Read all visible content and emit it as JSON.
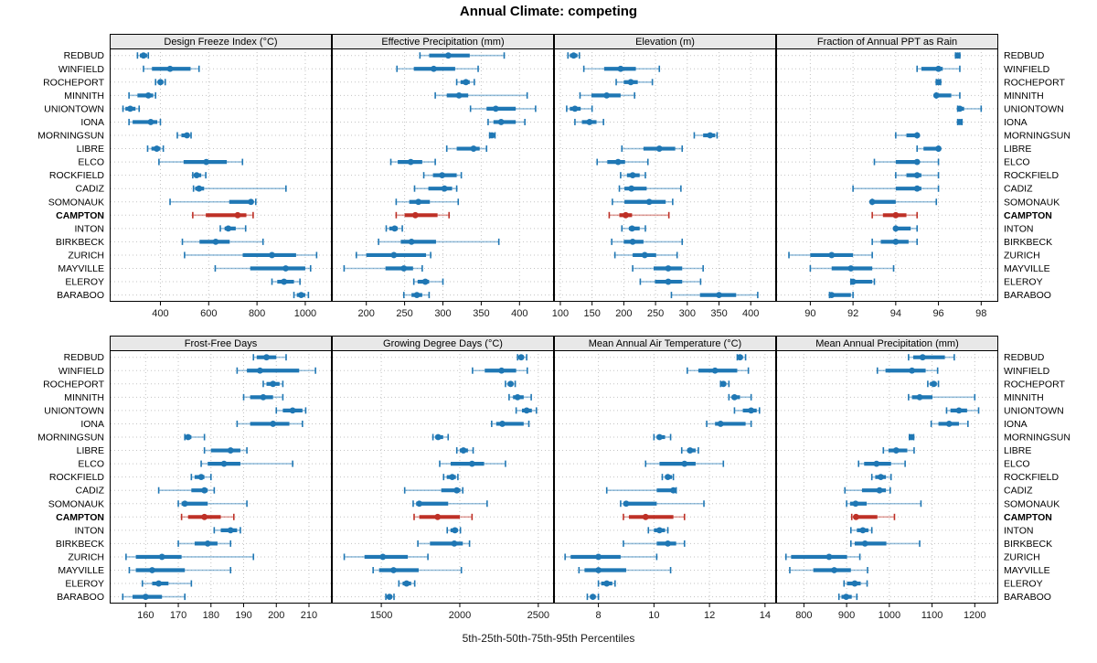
{
  "title": "Annual Climate: competing",
  "caption": "5th-25th-50th-75th-95th Percentiles",
  "percentiles": [
    "5th",
    "25th",
    "50th",
    "75th",
    "95th"
  ],
  "sites": [
    "REDBUD",
    "WINFIELD",
    "ROCHEPORT",
    "MINNITH",
    "UNIONTOWN",
    "IONA",
    "MORNINGSUN",
    "LIBRE",
    "ELCO",
    "ROCKFIELD",
    "CADIZ",
    "SOMONAUK",
    "CAMPTON",
    "INTON",
    "BIRKBECK",
    "ZURICH",
    "MAYVILLE",
    "ELEROY",
    "BARABOO"
  ],
  "highlight_site": "CAMPTON",
  "colors": {
    "series": "#1F77B4",
    "highlight": "#BE3026",
    "header_bg": "#E8E8E8",
    "grid": "#C3C3C3",
    "border": "#000000",
    "tick_text": "#1a1a1a"
  },
  "chart_data": [
    {
      "type": "errorbar",
      "title": "Design Freeze Index (°C)",
      "row": 0,
      "xlim": [
        190,
        1110
      ],
      "ticks": [
        400,
        600,
        800,
        1000
      ],
      "values": [
        [
          305,
          315,
          330,
          345,
          350
        ],
        [
          330,
          365,
          440,
          525,
          560
        ],
        [
          380,
          390,
          400,
          412,
          420
        ],
        [
          270,
          305,
          350,
          370,
          380
        ],
        [
          245,
          255,
          275,
          297,
          312
        ],
        [
          270,
          285,
          360,
          387,
          400
        ],
        [
          470,
          487,
          510,
          518,
          527
        ],
        [
          347,
          363,
          385,
          400,
          412
        ],
        [
          394,
          496,
          590,
          675,
          740
        ],
        [
          534,
          541,
          550,
          569,
          588
        ],
        [
          537,
          544,
          560,
          581,
          920
        ],
        [
          440,
          685,
          775,
          785,
          795
        ],
        [
          534,
          588,
          720,
          756,
          784
        ],
        [
          648,
          666,
          681,
          712,
          753
        ],
        [
          491,
          562,
          629,
          687,
          825
        ],
        [
          500,
          741,
          862,
          962,
          1047
        ],
        [
          627,
          772,
          919,
          1000,
          1022
        ],
        [
          862,
          884,
          912,
          953,
          978
        ],
        [
          953,
          965,
          983,
          1000,
          1013
        ]
      ]
    },
    {
      "type": "errorbar",
      "title": "Effective Precipitation (mm)",
      "row": 0,
      "xlim": [
        155,
        445
      ],
      "ticks": [
        200,
        250,
        300,
        350,
        400
      ],
      "values": [
        [
          270,
          282,
          307,
          335,
          380
        ],
        [
          240,
          262,
          288,
          316,
          346
        ],
        [
          318,
          323,
          330,
          335,
          341
        ],
        [
          290,
          305,
          321,
          333,
          410
        ],
        [
          336,
          357,
          369,
          395,
          421
        ],
        [
          359,
          366,
          376,
          395,
          407
        ],
        [
          361,
          362,
          364,
          366,
          368
        ],
        [
          305,
          318,
          340,
          348,
          357
        ],
        [
          232,
          241,
          258,
          273,
          290
        ],
        [
          275,
          287,
          299,
          318,
          324
        ],
        [
          263,
          281,
          302,
          312,
          318
        ],
        [
          239,
          256,
          268,
          283,
          320
        ],
        [
          239,
          250,
          264,
          293,
          308
        ],
        [
          226,
          230,
          237,
          241,
          247
        ],
        [
          216,
          245,
          259,
          291,
          373
        ],
        [
          187,
          200,
          236,
          278,
          284
        ],
        [
          171,
          225,
          249,
          261,
          273
        ],
        [
          262,
          267,
          277,
          282,
          300
        ],
        [
          249,
          259,
          266,
          273,
          282
        ]
      ]
    },
    {
      "type": "errorbar",
      "title": "Elevation (m)",
      "row": 0,
      "xlim": [
        90,
        440
      ],
      "ticks": [
        100,
        150,
        200,
        250,
        300,
        350,
        400
      ],
      "values": [
        [
          112,
          115,
          121,
          127,
          130
        ],
        [
          137,
          169,
          195,
          219,
          256
        ],
        [
          188,
          200,
          211,
          222,
          245
        ],
        [
          131,
          149,
          173,
          195,
          217
        ],
        [
          110,
          115,
          123,
          132,
          150
        ],
        [
          123,
          134,
          146,
          157,
          168
        ],
        [
          311,
          325,
          336,
          344,
          347
        ],
        [
          197,
          231,
          256,
          281,
          292
        ],
        [
          158,
          174,
          191,
          202,
          238
        ],
        [
          195,
          205,
          214,
          225,
          234
        ],
        [
          193,
          201,
          212,
          236,
          290
        ],
        [
          182,
          201,
          240,
          266,
          277
        ],
        [
          177,
          193,
          203,
          213,
          271
        ],
        [
          197,
          208,
          213,
          225,
          234
        ],
        [
          181,
          200,
          214,
          231,
          292
        ],
        [
          186,
          214,
          233,
          251,
          284
        ],
        [
          214,
          247,
          270,
          292,
          325
        ],
        [
          226,
          249,
          270,
          292,
          321
        ],
        [
          275,
          320,
          350,
          377,
          411
        ]
      ]
    },
    {
      "type": "errorbar",
      "title": "Fraction of Annual PPT as Rain",
      "row": 0,
      "xlim": [
        88.4,
        98.8
      ],
      "ticks": [
        90,
        92,
        94,
        96,
        98
      ],
      "values": [
        [
          96.8,
          96.9,
          96.9,
          97.0,
          97.0
        ],
        [
          95.0,
          95.2,
          96.0,
          96.2,
          97.0
        ],
        [
          95.9,
          96.0,
          96.0,
          96.0,
          96.1
        ],
        [
          95.9,
          95.9,
          95.9,
          96.6,
          97.0
        ],
        [
          96.9,
          97.0,
          97.0,
          97.2,
          98.0
        ],
        [
          96.9,
          97.0,
          97.0,
          97.0,
          97.1
        ],
        [
          94.0,
          94.5,
          95.0,
          95.0,
          95.0
        ],
        [
          95.0,
          95.3,
          96.0,
          96.0,
          96.0
        ],
        [
          93.0,
          94.0,
          95.0,
          95.0,
          96.0
        ],
        [
          94.0,
          94.5,
          95.0,
          95.2,
          96.0
        ],
        [
          92.0,
          94.0,
          95.0,
          95.2,
          96.0
        ],
        [
          92.9,
          92.9,
          92.9,
          94.0,
          95.9
        ],
        [
          92.9,
          93.4,
          94.0,
          94.5,
          95.0
        ],
        [
          94.0,
          94.0,
          94.0,
          94.7,
          95.0
        ],
        [
          92.9,
          93.3,
          94.0,
          94.6,
          95.0
        ],
        [
          89.0,
          90.0,
          91.0,
          92.0,
          92.9
        ],
        [
          90.0,
          91.0,
          91.9,
          92.9,
          93.9
        ],
        [
          91.9,
          92.0,
          92.0,
          92.9,
          93.0
        ],
        [
          90.9,
          91.0,
          91.0,
          91.9,
          92.0
        ]
      ]
    },
    {
      "type": "errorbar",
      "title": "Frost-Free Days",
      "row": 1,
      "xlim": [
        149,
        217
      ],
      "ticks": [
        160,
        170,
        180,
        190,
        200,
        210
      ],
      "values": [
        [
          193,
          194,
          197,
          200,
          203
        ],
        [
          188,
          191,
          195,
          207,
          212
        ],
        [
          196,
          197,
          199,
          201,
          202
        ],
        [
          190,
          192,
          196,
          199,
          202
        ],
        [
          200,
          202,
          205,
          208,
          209
        ],
        [
          188,
          192,
          199,
          204,
          208
        ],
        [
          172,
          172.5,
          173,
          174,
          178
        ],
        [
          178,
          180,
          186,
          189,
          191
        ],
        [
          177,
          179,
          184,
          189,
          205
        ],
        [
          174,
          175,
          177,
          178,
          180
        ],
        [
          164,
          174,
          178,
          179,
          181
        ],
        [
          170,
          171,
          172,
          179,
          191
        ],
        [
          171,
          173,
          178,
          183,
          187
        ],
        [
          181,
          183,
          186,
          188,
          189
        ],
        [
          170,
          175,
          179,
          182,
          186
        ],
        [
          154,
          157,
          165,
          171,
          193
        ],
        [
          155,
          157,
          162,
          172,
          186
        ],
        [
          159,
          162,
          164,
          167,
          174
        ],
        [
          153,
          156,
          160,
          165,
          172
        ]
      ]
    },
    {
      "type": "errorbar",
      "title": "Growing Degree Days (°C)",
      "row": 1,
      "xlim": [
        1185,
        2600
      ],
      "ticks": [
        1500,
        2000,
        2500
      ],
      "values": [
        [
          2368,
          2380,
          2391,
          2408,
          2426
        ],
        [
          2081,
          2159,
          2266,
          2359,
          2430
        ],
        [
          2291,
          2305,
          2324,
          2341,
          2353
        ],
        [
          2314,
          2339,
          2368,
          2407,
          2455
        ],
        [
          2359,
          2396,
          2426,
          2459,
          2488
        ],
        [
          2203,
          2232,
          2271,
          2407,
          2440
        ],
        [
          1829,
          1845,
          1862,
          1894,
          1926
        ],
        [
          1981,
          2000,
          2023,
          2052,
          2085
        ],
        [
          1872,
          1942,
          2078,
          2155,
          2291
        ],
        [
          1897,
          1917,
          1952,
          1975,
          1988
        ],
        [
          1649,
          1882,
          1981,
          2004,
          2019
        ],
        [
          1703,
          1722,
          1742,
          1926,
          2174
        ],
        [
          1709,
          1742,
          1859,
          2000,
          2078
        ],
        [
          1920,
          1941,
          1969,
          1988,
          2004
        ],
        [
          1733,
          1810,
          1965,
          2019,
          2062
        ],
        [
          1264,
          1393,
          1510,
          1669,
          1797
        ],
        [
          1448,
          1486,
          1578,
          1738,
          2010
        ],
        [
          1612,
          1636,
          1661,
          1690,
          1713
        ],
        [
          1529,
          1539,
          1552,
          1568,
          1581
        ]
      ]
    },
    {
      "type": "errorbar",
      "title": "Mean Annual Air Temperature (°C)",
      "row": 1,
      "xlim": [
        6.4,
        14.4
      ],
      "ticks": [
        8,
        10,
        12,
        14
      ],
      "values": [
        [
          13.0,
          13.05,
          13.1,
          13.2,
          13.3
        ],
        [
          11.2,
          11.6,
          12.2,
          13.0,
          13.4
        ],
        [
          12.4,
          12.45,
          12.5,
          12.6,
          12.7
        ],
        [
          12.7,
          12.8,
          12.9,
          13.1,
          13.5
        ],
        [
          12.9,
          13.2,
          13.5,
          13.7,
          13.8
        ],
        [
          11.9,
          12.2,
          12.4,
          13.3,
          13.5
        ],
        [
          10.0,
          10.1,
          10.2,
          10.4,
          10.6
        ],
        [
          11.0,
          11.2,
          11.3,
          11.5,
          11.6
        ],
        [
          9.7,
          10.2,
          11.1,
          11.5,
          12.5
        ],
        [
          10.3,
          10.4,
          10.5,
          10.65,
          10.7
        ],
        [
          8.3,
          10.1,
          10.7,
          10.75,
          10.8
        ],
        [
          8.8,
          8.9,
          9.0,
          10.1,
          11.8
        ],
        [
          8.9,
          9.1,
          9.7,
          10.7,
          11.1
        ],
        [
          9.8,
          10.0,
          10.2,
          10.4,
          10.5
        ],
        [
          8.9,
          10.1,
          10.5,
          10.8,
          11.1
        ],
        [
          6.8,
          7.0,
          8.0,
          8.8,
          10.1
        ],
        [
          7.3,
          7.5,
          8.0,
          9.0,
          10.6
        ],
        [
          8.0,
          8.1,
          8.3,
          8.5,
          8.6
        ],
        [
          7.6,
          7.7,
          7.8,
          7.9,
          8.0
        ]
      ]
    },
    {
      "type": "errorbar",
      "title": "Mean Annual Precipitation (mm)",
      "row": 1,
      "xlim": [
        735,
        1255
      ],
      "ticks": [
        800,
        900,
        1000,
        1100,
        1200
      ],
      "values": [
        [
          1045,
          1056,
          1078,
          1130,
          1152
        ],
        [
          972,
          991,
          1053,
          1085,
          1113
        ],
        [
          1090,
          1095,
          1104,
          1111,
          1115
        ],
        [
          1045,
          1053,
          1071,
          1101,
          1200
        ],
        [
          1134,
          1143,
          1163,
          1182,
          1209
        ],
        [
          1098,
          1115,
          1140,
          1163,
          1184
        ],
        [
          1047,
          1049,
          1052,
          1055,
          1057
        ],
        [
          986,
          998,
          1016,
          1042,
          1058
        ],
        [
          928,
          941,
          970,
          1004,
          1037
        ],
        [
          959,
          967,
          980,
          992,
          1004
        ],
        [
          896,
          936,
          977,
          992,
          1002
        ],
        [
          900,
          908,
          921,
          947,
          1074
        ],
        [
          912,
          917,
          922,
          972,
          1012
        ],
        [
          910,
          924,
          938,
          951,
          959
        ],
        [
          910,
          919,
          943,
          993,
          1071
        ],
        [
          758,
          770,
          859,
          901,
          931
        ],
        [
          767,
          822,
          871,
          910,
          949
        ],
        [
          894,
          901,
          919,
          933,
          948
        ],
        [
          882,
          888,
          899,
          912,
          924
        ]
      ]
    }
  ]
}
